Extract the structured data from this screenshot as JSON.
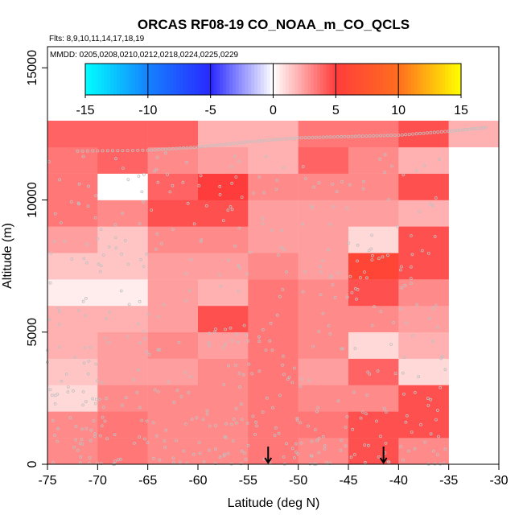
{
  "colors": {
    "background": "#ffffff",
    "points": "#c0c0c0",
    "axis": "#000000"
  },
  "chart_data": {
    "type": "heatmap",
    "title": "ORCAS RF08-19 CO_NOAA_m_CO_QCLS",
    "subtitle_flights": "Flts: 8,9,10,11,14,17,18,19",
    "subtitle_dates": "MMDD: 0205,0208,0210,0212,0218,0224,0225,0229",
    "xlabel": "Latitude (deg N)",
    "ylabel": "Altitude (m)",
    "xlim": [
      -75,
      -30
    ],
    "ylim": [
      0,
      15800
    ],
    "xticks": [
      "-75",
      "-70",
      "-65",
      "-60",
      "-55",
      "-50",
      "-45",
      "-40",
      "-35",
      "-30"
    ],
    "yticks": [
      "0",
      "5000",
      "10000",
      "15000"
    ],
    "colorbar": {
      "min": -15,
      "max": 15,
      "ticks": [
        "-15",
        "-10",
        "-5",
        "0",
        "5",
        "10",
        "15"
      ]
    },
    "lat_bins": [
      -75,
      -70,
      -65,
      -60,
      -55,
      -50,
      -45,
      -40,
      -35,
      -30
    ],
    "alt_bin_size": 1000,
    "cells": [
      [
        3.0,
        3.5,
        3.0,
        3.0,
        3.5,
        3.0,
        4.5,
        3.0,
        null
      ],
      [
        3.0,
        3.5,
        3.0,
        3.0,
        3.5,
        3.5,
        4.5,
        4.5,
        null
      ],
      [
        1.0,
        3.0,
        3.0,
        3.0,
        3.5,
        3.0,
        3.0,
        4.5,
        null
      ],
      [
        1.5,
        2.5,
        2.5,
        3.0,
        3.5,
        2.5,
        4.0,
        1.0,
        null
      ],
      [
        2.0,
        2.5,
        3.0,
        2.5,
        3.5,
        3.0,
        1.0,
        2.0,
        null
      ],
      [
        2.0,
        2.0,
        2.5,
        4.5,
        3.5,
        3.0,
        3.0,
        2.5,
        null
      ],
      [
        0.5,
        0.5,
        2.5,
        2.0,
        3.5,
        3.0,
        4.5,
        3.0,
        null
      ],
      [
        1.5,
        1.5,
        2.5,
        2.5,
        3.0,
        2.5,
        6.0,
        4.5,
        null
      ],
      [
        2.5,
        1.5,
        3.0,
        3.0,
        2.5,
        2.5,
        1.0,
        4.5,
        null
      ],
      [
        3.5,
        3.0,
        4.5,
        4.5,
        2.5,
        2.5,
        2.5,
        2.0,
        null
      ],
      [
        3.5,
        0.0,
        4.0,
        5.0,
        3.0,
        3.0,
        3.0,
        4.5,
        null
      ],
      [
        3.5,
        4.0,
        3.0,
        2.5,
        2.0,
        4.0,
        3.0,
        2.0,
        null
      ],
      [
        4.0,
        4.0,
        4.0,
        2.0,
        2.0,
        3.5,
        3.5,
        4.5,
        2.0
      ]
    ],
    "profile_arrows_lat": [
      -53,
      -41.5
    ],
    "flight_track_top": [
      {
        "lat": -72,
        "alt": 11850
      },
      {
        "lat": -65,
        "alt": 11880
      },
      {
        "lat": -60,
        "alt": 12000
      },
      {
        "lat": -55,
        "alt": 12200
      },
      {
        "lat": -50,
        "alt": 12350
      },
      {
        "lat": -45,
        "alt": 12400
      },
      {
        "lat": -40,
        "alt": 12450
      },
      {
        "lat": -35,
        "alt": 12600
      },
      {
        "lat": -31,
        "alt": 12750
      }
    ]
  }
}
